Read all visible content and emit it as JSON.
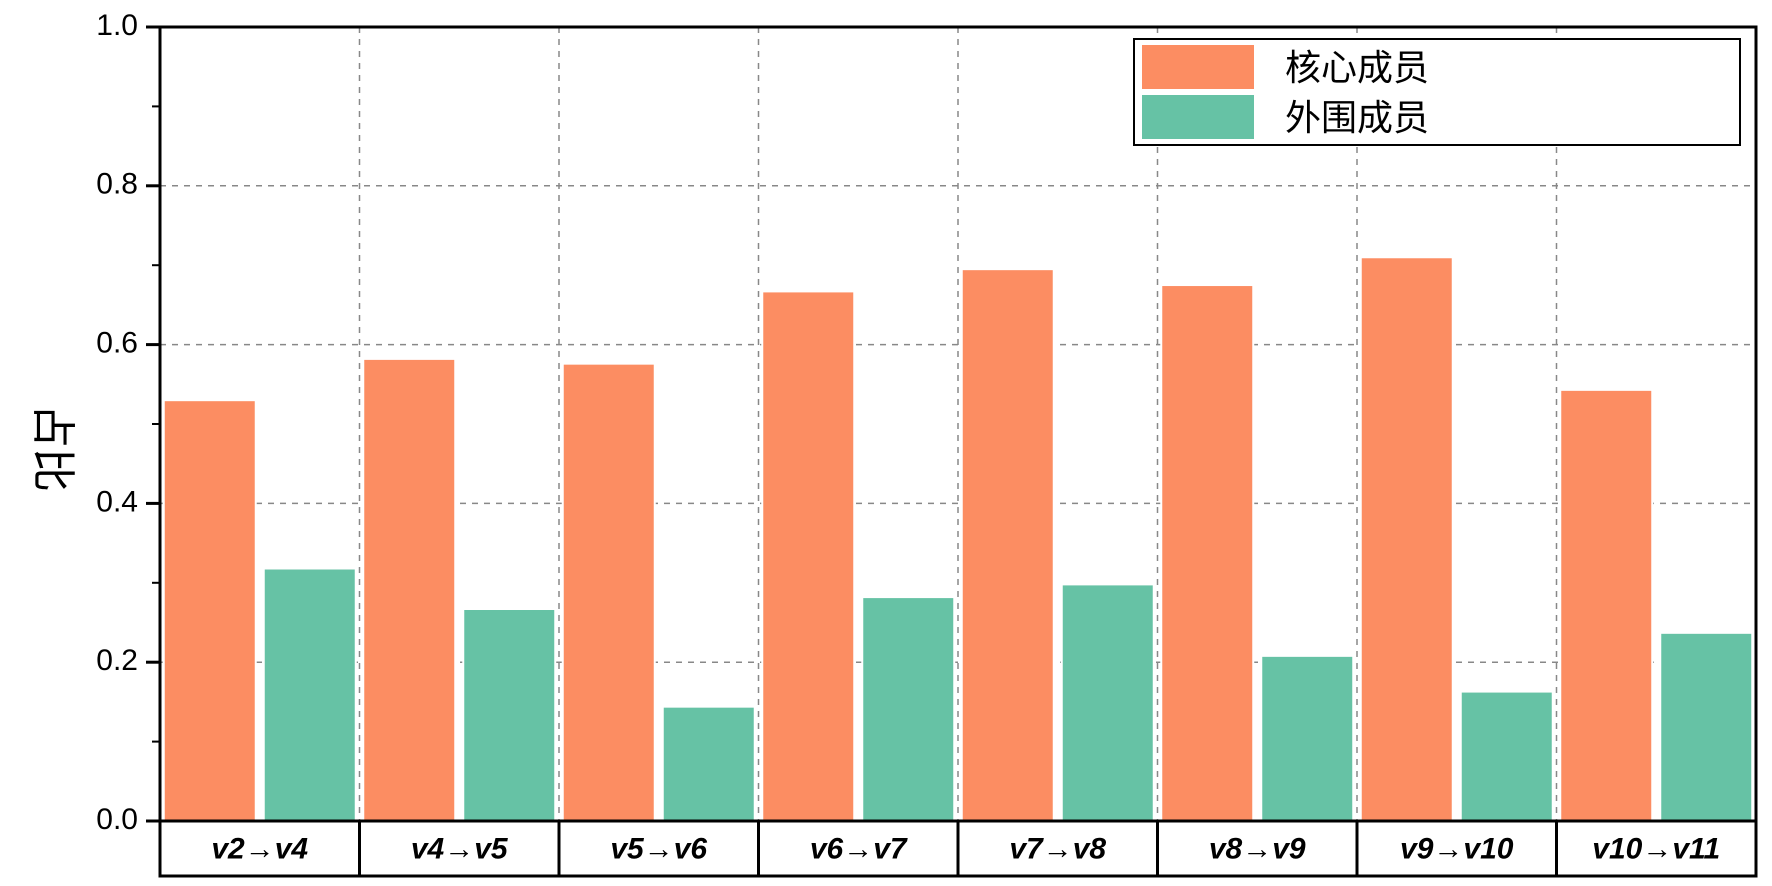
{
  "chart_data": {
    "type": "bar",
    "title": "",
    "xlabel": "",
    "ylabel": "占比",
    "ylim": [
      0,
      1.0
    ],
    "yticks": [
      "0.0",
      "0.2",
      "0.4",
      "0.6",
      "0.8",
      "1.0"
    ],
    "grid": true,
    "legend_position": "top-right",
    "categories": [
      "v2→v4",
      "v4→v5",
      "v5→v6",
      "v6→v7",
      "v7→v8",
      "v8→v9",
      "v9→v10",
      "v10→v11"
    ],
    "series": [
      {
        "name": "核心成员",
        "color": "#FC8D62",
        "values": [
          0.53,
          0.582,
          0.576,
          0.667,
          0.695,
          0.675,
          0.71,
          0.543
        ]
      },
      {
        "name": "外围成员",
        "color": "#66C2A5",
        "values": [
          0.318,
          0.267,
          0.144,
          0.282,
          0.298,
          0.208,
          0.163,
          0.237
        ]
      }
    ]
  }
}
